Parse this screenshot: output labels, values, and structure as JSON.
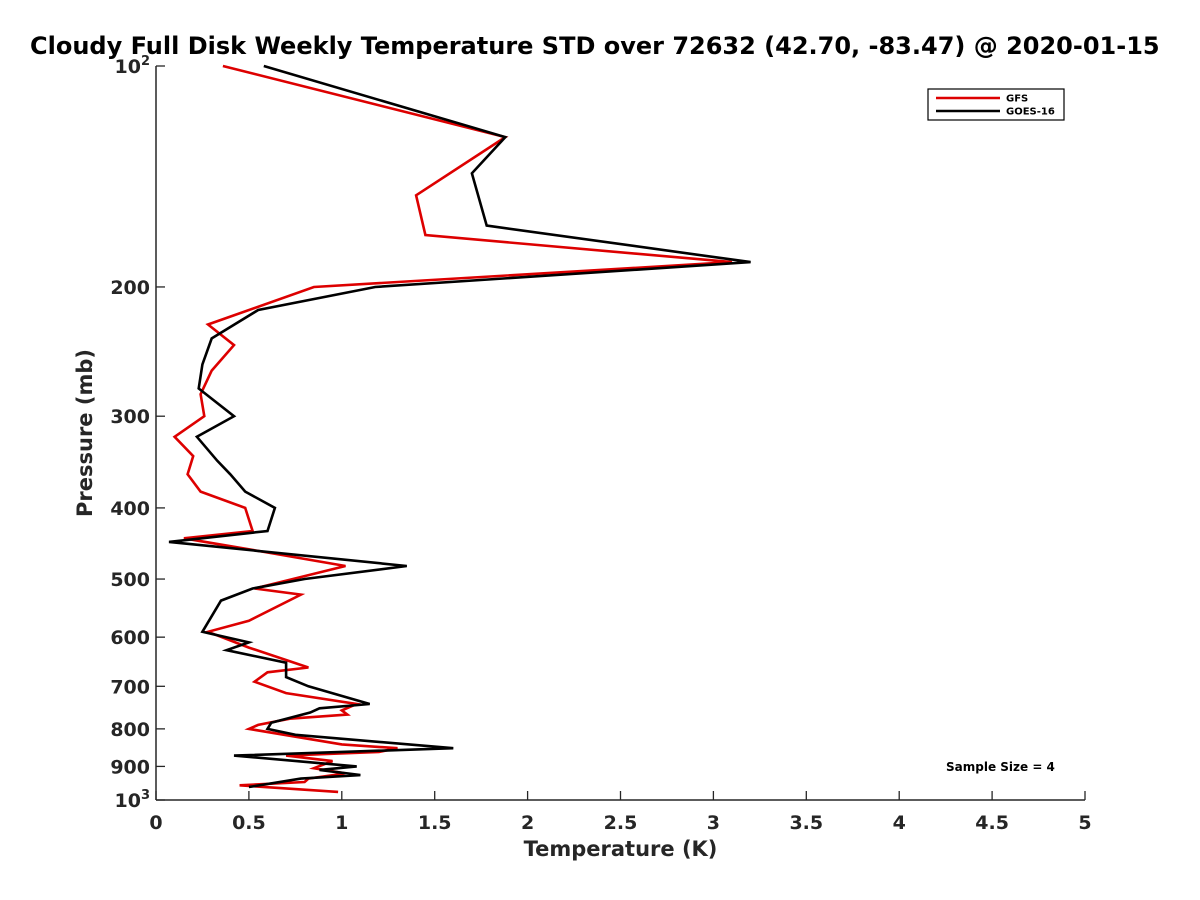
{
  "chart_data": {
    "type": "line",
    "title": "Cloudy Full Disk Weekly Temperature STD over 72632 (42.70, -83.47) @ 2020-01-15",
    "xlabel": "Temperature (K)",
    "ylabel": "Pressure (mb)",
    "xlim": [
      0,
      5
    ],
    "ylim": [
      100,
      1000
    ],
    "y_scale": "log",
    "y_reversed": true,
    "x_ticks": [
      "0",
      "0.5",
      "1",
      "1.5",
      "2",
      "2.5",
      "3",
      "3.5",
      "4",
      "4.5",
      "5"
    ],
    "y_ticks": [
      {
        "value": 100,
        "label": "10",
        "sup": "2"
      },
      {
        "value": 200,
        "label": "200",
        "sup": ""
      },
      {
        "value": 300,
        "label": "300",
        "sup": ""
      },
      {
        "value": 400,
        "label": "400",
        "sup": ""
      },
      {
        "value": 500,
        "label": "500",
        "sup": ""
      },
      {
        "value": 600,
        "label": "600",
        "sup": ""
      },
      {
        "value": 700,
        "label": "700",
        "sup": ""
      },
      {
        "value": 800,
        "label": "800",
        "sup": ""
      },
      {
        "value": 900,
        "label": "900",
        "sup": ""
      },
      {
        "value": 1000,
        "label": "10",
        "sup": "3"
      }
    ],
    "grid": false,
    "legend_position": "top-right",
    "annotation": "Sample Size = 4",
    "series": [
      {
        "name": "GFS",
        "color": "#dd0000",
        "points": [
          [
            0.36,
            100
          ],
          [
            1.88,
            125
          ],
          [
            1.4,
            150
          ],
          [
            1.45,
            170
          ],
          [
            3.1,
            185
          ],
          [
            0.85,
            200
          ],
          [
            0.28,
            225
          ],
          [
            0.42,
            240
          ],
          [
            0.3,
            260
          ],
          [
            0.24,
            280
          ],
          [
            0.26,
            300
          ],
          [
            0.1,
            320
          ],
          [
            0.2,
            340
          ],
          [
            0.17,
            360
          ],
          [
            0.24,
            380
          ],
          [
            0.48,
            400
          ],
          [
            0.52,
            430
          ],
          [
            0.15,
            440
          ],
          [
            0.6,
            460
          ],
          [
            1.02,
            480
          ],
          [
            0.53,
            515
          ],
          [
            0.78,
            525
          ],
          [
            0.5,
            570
          ],
          [
            0.28,
            590
          ],
          [
            0.5,
            620
          ],
          [
            0.82,
            660
          ],
          [
            0.6,
            670
          ],
          [
            0.53,
            690
          ],
          [
            0.7,
            715
          ],
          [
            1.08,
            740
          ],
          [
            1.0,
            755
          ],
          [
            1.03,
            765
          ],
          [
            0.72,
            775
          ],
          [
            0.55,
            790
          ],
          [
            0.5,
            800
          ],
          [
            1.0,
            840
          ],
          [
            1.3,
            850
          ],
          [
            1.2,
            860
          ],
          [
            0.7,
            870
          ],
          [
            0.95,
            885
          ],
          [
            0.85,
            905
          ],
          [
            1.02,
            920
          ],
          [
            0.82,
            935
          ],
          [
            0.8,
            945
          ],
          [
            0.45,
            955
          ],
          [
            0.98,
            975
          ]
        ]
      },
      {
        "name": "GOES-16",
        "color": "#000000",
        "points": [
          [
            0.58,
            100
          ],
          [
            1.88,
            125
          ],
          [
            1.7,
            140
          ],
          [
            1.78,
            165
          ],
          [
            3.2,
            185
          ],
          [
            1.18,
            200
          ],
          [
            0.55,
            215
          ],
          [
            0.3,
            235
          ],
          [
            0.25,
            255
          ],
          [
            0.23,
            275
          ],
          [
            0.42,
            300
          ],
          [
            0.22,
            320
          ],
          [
            0.33,
            345
          ],
          [
            0.4,
            360
          ],
          [
            0.48,
            380
          ],
          [
            0.64,
            400
          ],
          [
            0.6,
            430
          ],
          [
            0.07,
            445
          ],
          [
            1.35,
            480
          ],
          [
            0.8,
            500
          ],
          [
            0.52,
            515
          ],
          [
            0.35,
            535
          ],
          [
            0.25,
            590
          ],
          [
            0.5,
            610
          ],
          [
            0.38,
            625
          ],
          [
            0.7,
            650
          ],
          [
            0.7,
            680
          ],
          [
            0.82,
            700
          ],
          [
            1.15,
            740
          ],
          [
            0.88,
            750
          ],
          [
            0.83,
            760
          ],
          [
            0.62,
            785
          ],
          [
            0.6,
            800
          ],
          [
            0.75,
            815
          ],
          [
            1.6,
            850
          ],
          [
            0.42,
            870
          ],
          [
            1.08,
            900
          ],
          [
            0.88,
            910
          ],
          [
            1.1,
            925
          ],
          [
            0.78,
            935
          ],
          [
            0.5,
            960
          ]
        ]
      }
    ]
  }
}
